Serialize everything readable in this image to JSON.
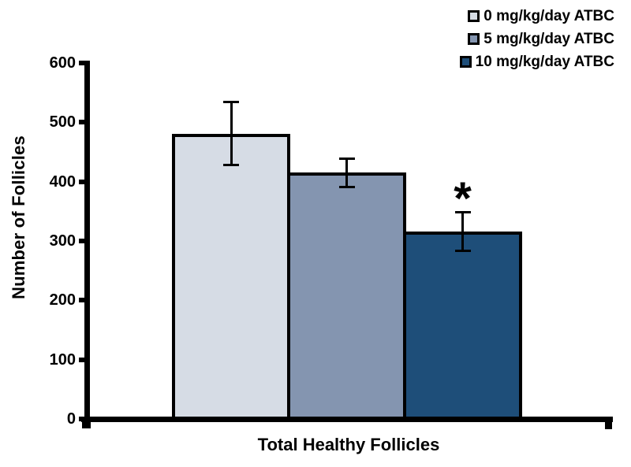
{
  "chart_data": {
    "type": "bar",
    "title": "",
    "xlabel": "Total Healthy Follicles",
    "ylabel": "Number of Follicles",
    "categories": [
      "Total Healthy Follicles"
    ],
    "series": [
      {
        "name": "0 mg/kg/day ATBC",
        "value": 481,
        "error": 53,
        "color": "#d6dce5"
      },
      {
        "name": "5 mg/kg/day ATBC",
        "value": 415,
        "error": 24,
        "color": "#8495b0"
      },
      {
        "name": "10 mg/kg/day ATBC",
        "value": 316,
        "error": 32,
        "color": "#1e4e79",
        "annotation": "*"
      }
    ],
    "ylim": [
      0,
      600
    ],
    "ytick_values": [
      0,
      100,
      200,
      300,
      400,
      500,
      600
    ],
    "grid": false,
    "legend_position": "top-right",
    "annotation_meaning_visible_symbol": "*"
  },
  "colors": {
    "axis": "#000000",
    "text": "#000000",
    "bar_border": "#000000",
    "background": "#ffffff"
  }
}
